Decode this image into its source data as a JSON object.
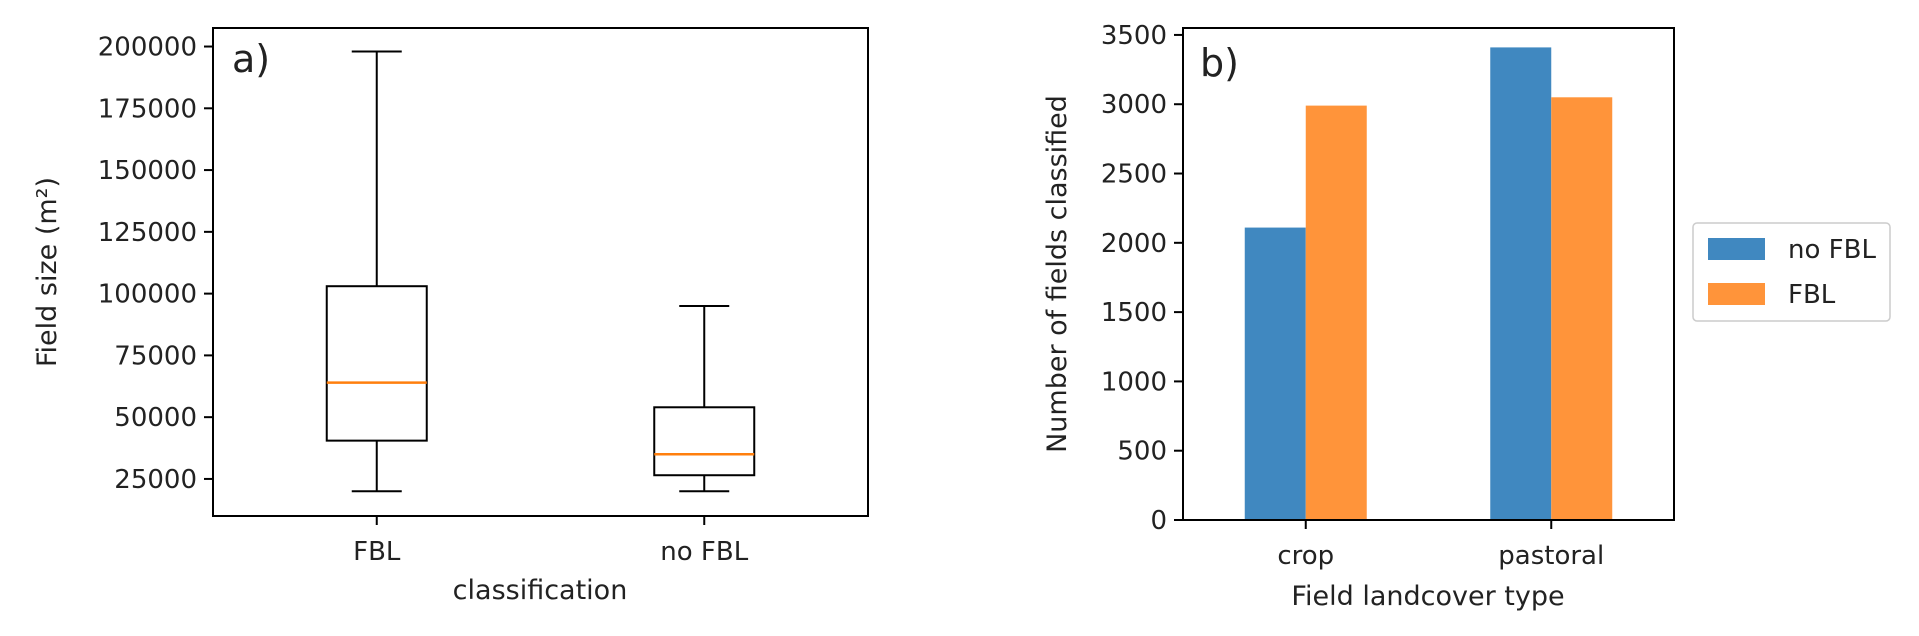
{
  "chart_data": [
    {
      "type": "box",
      "panel_label": "a)",
      "xlabel": "classification",
      "ylabel": "Field size (m²)",
      "ylim": [
        10000,
        207500
      ],
      "yticks": [
        25000,
        50000,
        75000,
        100000,
        125000,
        150000,
        175000,
        200000
      ],
      "categories": [
        "FBL",
        "no FBL"
      ],
      "boxes": [
        {
          "name": "FBL",
          "whisker_low": 20000,
          "q1": 40500,
          "median": 64000,
          "q3": 103000,
          "whisker_high": 198000
        },
        {
          "name": "no FBL",
          "whisker_low": 20000,
          "q1": 26500,
          "median": 35000,
          "q3": 54000,
          "whisker_high": 95000
        }
      ],
      "colors": {
        "box": "#000000",
        "median": "#ff7f0e"
      }
    },
    {
      "type": "bar",
      "panel_label": "b)",
      "xlabel": "Field landcover type",
      "ylabel": "Number of fields classified",
      "ylim": [
        0,
        3550
      ],
      "yticks": [
        0,
        500,
        1000,
        1500,
        2000,
        2500,
        3000,
        3500
      ],
      "categories": [
        "crop",
        "pastoral"
      ],
      "series": [
        {
          "name": "no FBL",
          "color": "#4088c0",
          "values": [
            2110,
            3410
          ]
        },
        {
          "name": "FBL",
          "color": "#ff943a",
          "values": [
            2990,
            3050
          ]
        }
      ],
      "legend": "outside-right"
    }
  ]
}
